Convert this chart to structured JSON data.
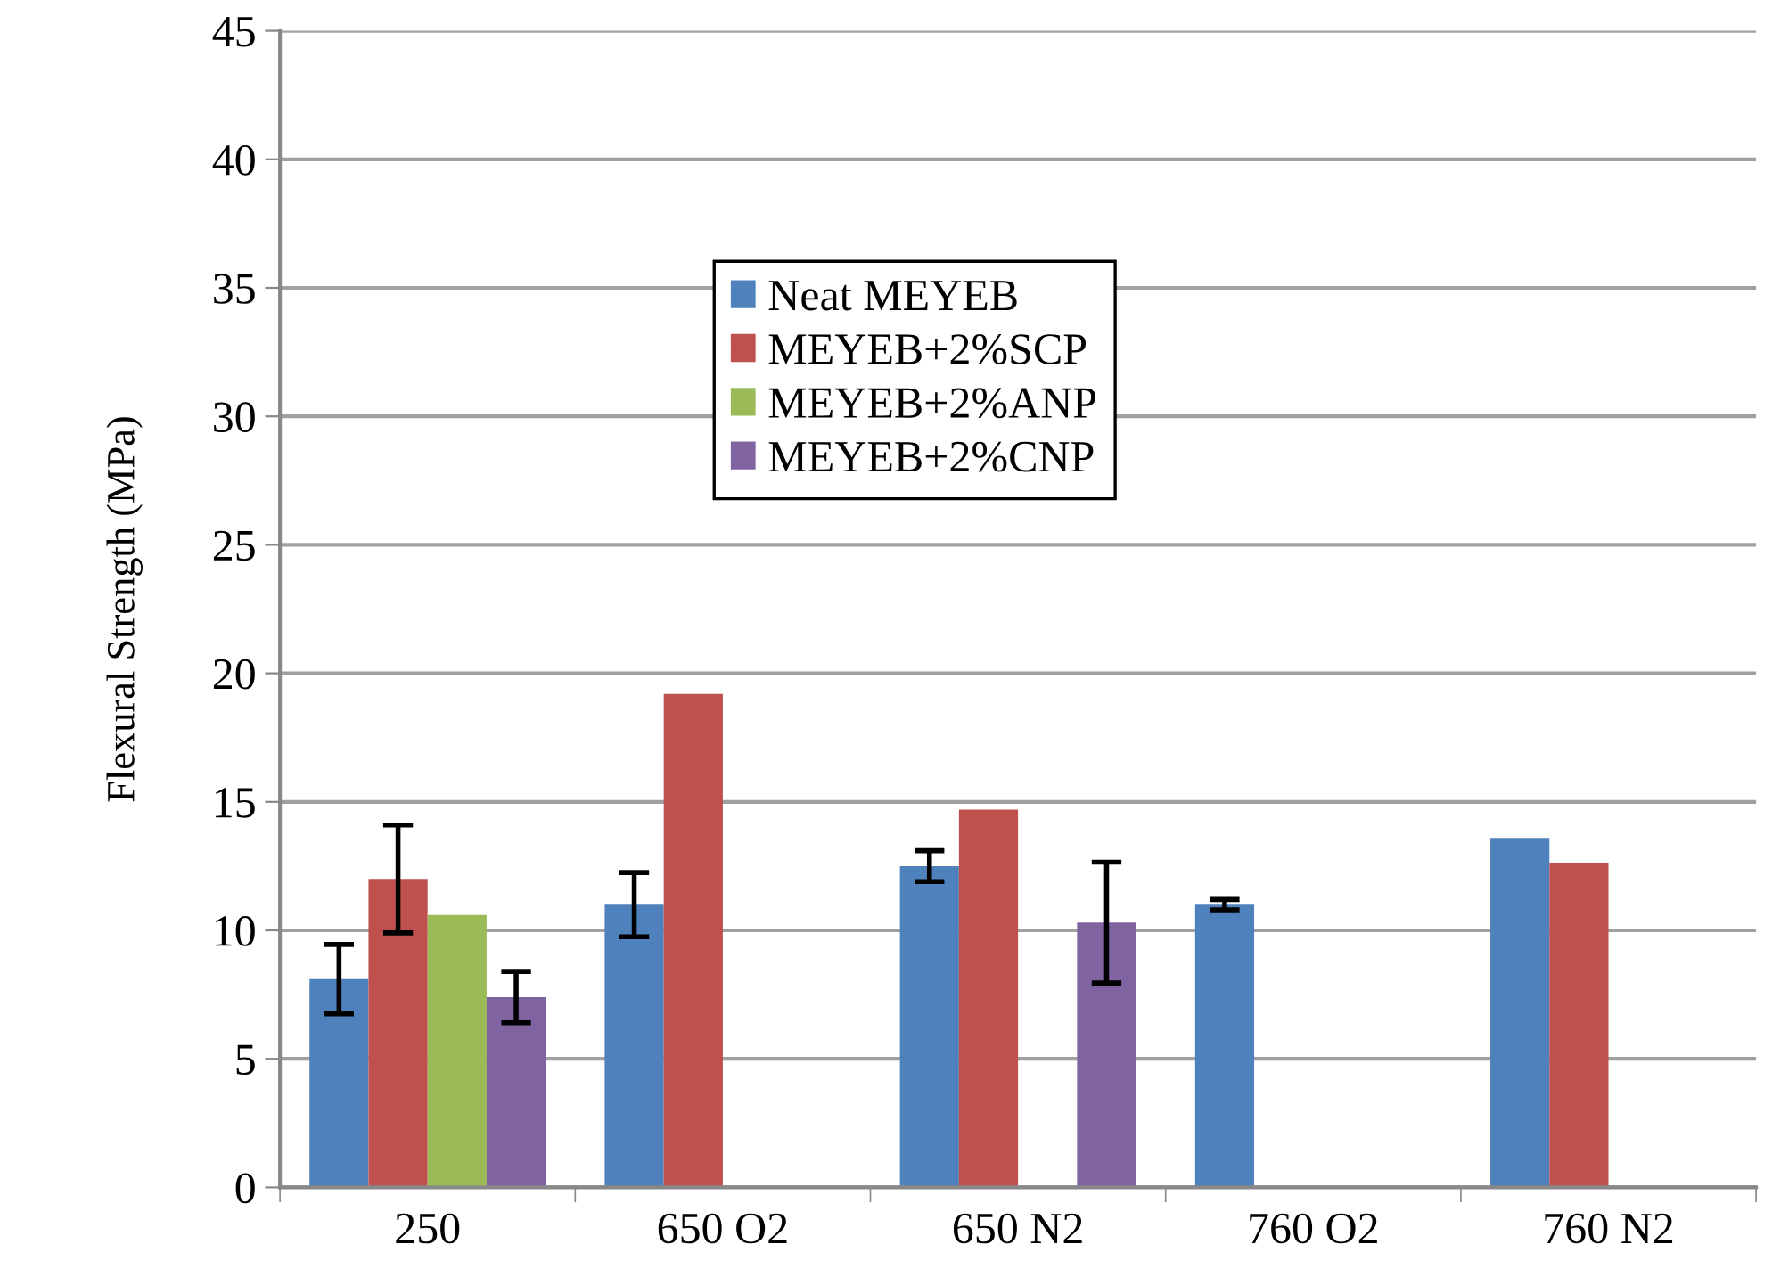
{
  "chart_data": {
    "type": "bar",
    "ylabel": "Flexural Strength (MPa)",
    "categories": [
      "250",
      "650 O2",
      "650 N2",
      "760 O2",
      "760 N2"
    ],
    "series": [
      {
        "name": "Neat MEYEB",
        "color": "#4f81bd",
        "values": [
          8.1,
          11.0,
          12.5,
          11.0,
          13.6
        ],
        "errors": [
          1.35,
          1.25,
          0.6,
          0.2,
          null
        ]
      },
      {
        "name": "MEYEB+2%SCP",
        "color": "#c0504d",
        "values": [
          12.0,
          19.2,
          14.7,
          null,
          12.6
        ],
        "errors": [
          2.1,
          null,
          null,
          null,
          null
        ]
      },
      {
        "name": "MEYEB+2%ANP",
        "color": "#9bbb59",
        "values": [
          10.6,
          null,
          null,
          null,
          null
        ]
      },
      {
        "name": "MEYEB+2%CNP",
        "color": "#8064a2",
        "values": [
          7.4,
          null,
          10.3,
          null,
          null
        ],
        "errors": [
          1.0,
          null,
          2.35,
          null,
          null
        ]
      }
    ],
    "ylim": [
      0,
      45
    ],
    "yticks": [
      0,
      5,
      10,
      15,
      20,
      25,
      30,
      35,
      40,
      45
    ],
    "grid": "y",
    "legend": "top center"
  }
}
